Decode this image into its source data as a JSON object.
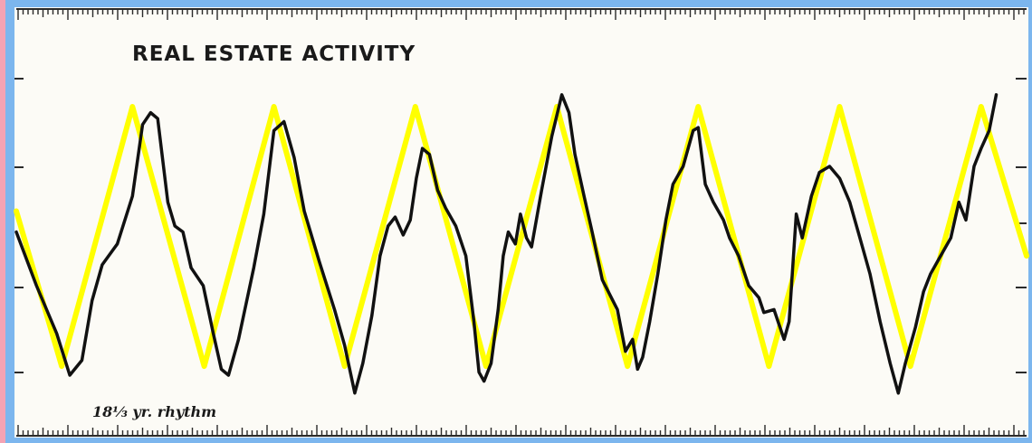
{
  "chart_data": {
    "type": "line",
    "title": "REAL ESTATE ACTIVITY",
    "annotation": "18⅓ yr. rhythm",
    "xlabel": "",
    "ylabel": "",
    "grid": false,
    "legend": "none",
    "xlim": [
      0,
      100
    ],
    "ylim": [
      0,
      100
    ],
    "series": [
      {
        "role": "cycle",
        "color": "#ffff00",
        "values": [
          [
            0,
            55
          ],
          [
            4.5,
            3
          ],
          [
            11.5,
            90
          ],
          [
            18.6,
            3
          ],
          [
            25.5,
            90
          ],
          [
            32.5,
            3
          ],
          [
            39.5,
            90
          ],
          [
            46.5,
            3
          ],
          [
            53.5,
            90
          ],
          [
            60.5,
            3
          ],
          [
            67.5,
            90
          ],
          [
            74.5,
            3
          ],
          [
            81.5,
            90
          ],
          [
            88.5,
            3
          ],
          [
            95.5,
            90
          ],
          [
            100,
            40
          ]
        ]
      },
      {
        "role": "activity",
        "color": "#111111",
        "values": [
          [
            0,
            48
          ],
          [
            2,
            30
          ],
          [
            4,
            14
          ],
          [
            5.3,
            0
          ],
          [
            6.5,
            5
          ],
          [
            7.5,
            25
          ],
          [
            8.5,
            37
          ],
          [
            10,
            44
          ],
          [
            11.5,
            60
          ],
          [
            12.5,
            84
          ],
          [
            13.3,
            88
          ],
          [
            14,
            86
          ],
          [
            15,
            58
          ],
          [
            15.7,
            50
          ],
          [
            16.5,
            48
          ],
          [
            17.3,
            36
          ],
          [
            18.5,
            30
          ],
          [
            19.5,
            14
          ],
          [
            20.3,
            2
          ],
          [
            21,
            0
          ],
          [
            22,
            12
          ],
          [
            23.5,
            36
          ],
          [
            24.5,
            54
          ],
          [
            25.5,
            82
          ],
          [
            26.5,
            85
          ],
          [
            27.5,
            73
          ],
          [
            28.5,
            55
          ],
          [
            30,
            38
          ],
          [
            31.5,
            22
          ],
          [
            32.5,
            10
          ],
          [
            33.5,
            -6
          ],
          [
            34.3,
            4
          ],
          [
            35.2,
            20
          ],
          [
            36,
            40
          ],
          [
            36.8,
            50
          ],
          [
            37.5,
            53
          ],
          [
            38.3,
            47
          ],
          [
            39,
            52
          ],
          [
            39.6,
            66
          ],
          [
            40.2,
            76
          ],
          [
            40.9,
            74
          ],
          [
            41.7,
            62
          ],
          [
            42.5,
            56
          ],
          [
            43.5,
            50
          ],
          [
            44.5,
            40
          ],
          [
            45.3,
            18
          ],
          [
            45.8,
            1
          ],
          [
            46.3,
            -2
          ],
          [
            47,
            4
          ],
          [
            47.7,
            22
          ],
          [
            48.2,
            40
          ],
          [
            48.7,
            48
          ],
          [
            49.4,
            44
          ],
          [
            49.9,
            54
          ],
          [
            50.5,
            46
          ],
          [
            51,
            43
          ],
          [
            52,
            62
          ],
          [
            53,
            80
          ],
          [
            54,
            94
          ],
          [
            54.7,
            88
          ],
          [
            55.3,
            74
          ],
          [
            56.2,
            60
          ],
          [
            57,
            48
          ],
          [
            58,
            32
          ],
          [
            59.5,
            22
          ],
          [
            60.3,
            8
          ],
          [
            61,
            12
          ],
          [
            61.5,
            2
          ],
          [
            62,
            6
          ],
          [
            62.7,
            18
          ],
          [
            63.5,
            34
          ],
          [
            64.3,
            52
          ],
          [
            65,
            64
          ],
          [
            66,
            70
          ],
          [
            67,
            82
          ],
          [
            67.5,
            83
          ],
          [
            68.2,
            64
          ],
          [
            69,
            58
          ],
          [
            70,
            52
          ],
          [
            70.6,
            46
          ],
          [
            71.5,
            40
          ],
          [
            72.5,
            30
          ],
          [
            73.5,
            26
          ],
          [
            74,
            21
          ],
          [
            75,
            22
          ],
          [
            75.8,
            14
          ],
          [
            76,
            12
          ],
          [
            76.5,
            18
          ],
          [
            77.2,
            54
          ],
          [
            77.8,
            46
          ],
          [
            78.7,
            60
          ],
          [
            79.5,
            68
          ],
          [
            80.5,
            70
          ],
          [
            81.5,
            66
          ],
          [
            82.5,
            58
          ],
          [
            83.5,
            46
          ],
          [
            84.5,
            34
          ],
          [
            85.5,
            18
          ],
          [
            86.5,
            4
          ],
          [
            87.3,
            -6
          ],
          [
            88,
            4
          ],
          [
            89,
            16
          ],
          [
            89.8,
            28
          ],
          [
            90.5,
            34
          ],
          [
            91.5,
            40
          ],
          [
            92.5,
            46
          ],
          [
            93.3,
            58
          ],
          [
            94,
            52
          ],
          [
            94.8,
            70
          ],
          [
            95.5,
            76
          ],
          [
            96.3,
            82
          ],
          [
            97,
            94
          ]
        ]
      }
    ]
  }
}
